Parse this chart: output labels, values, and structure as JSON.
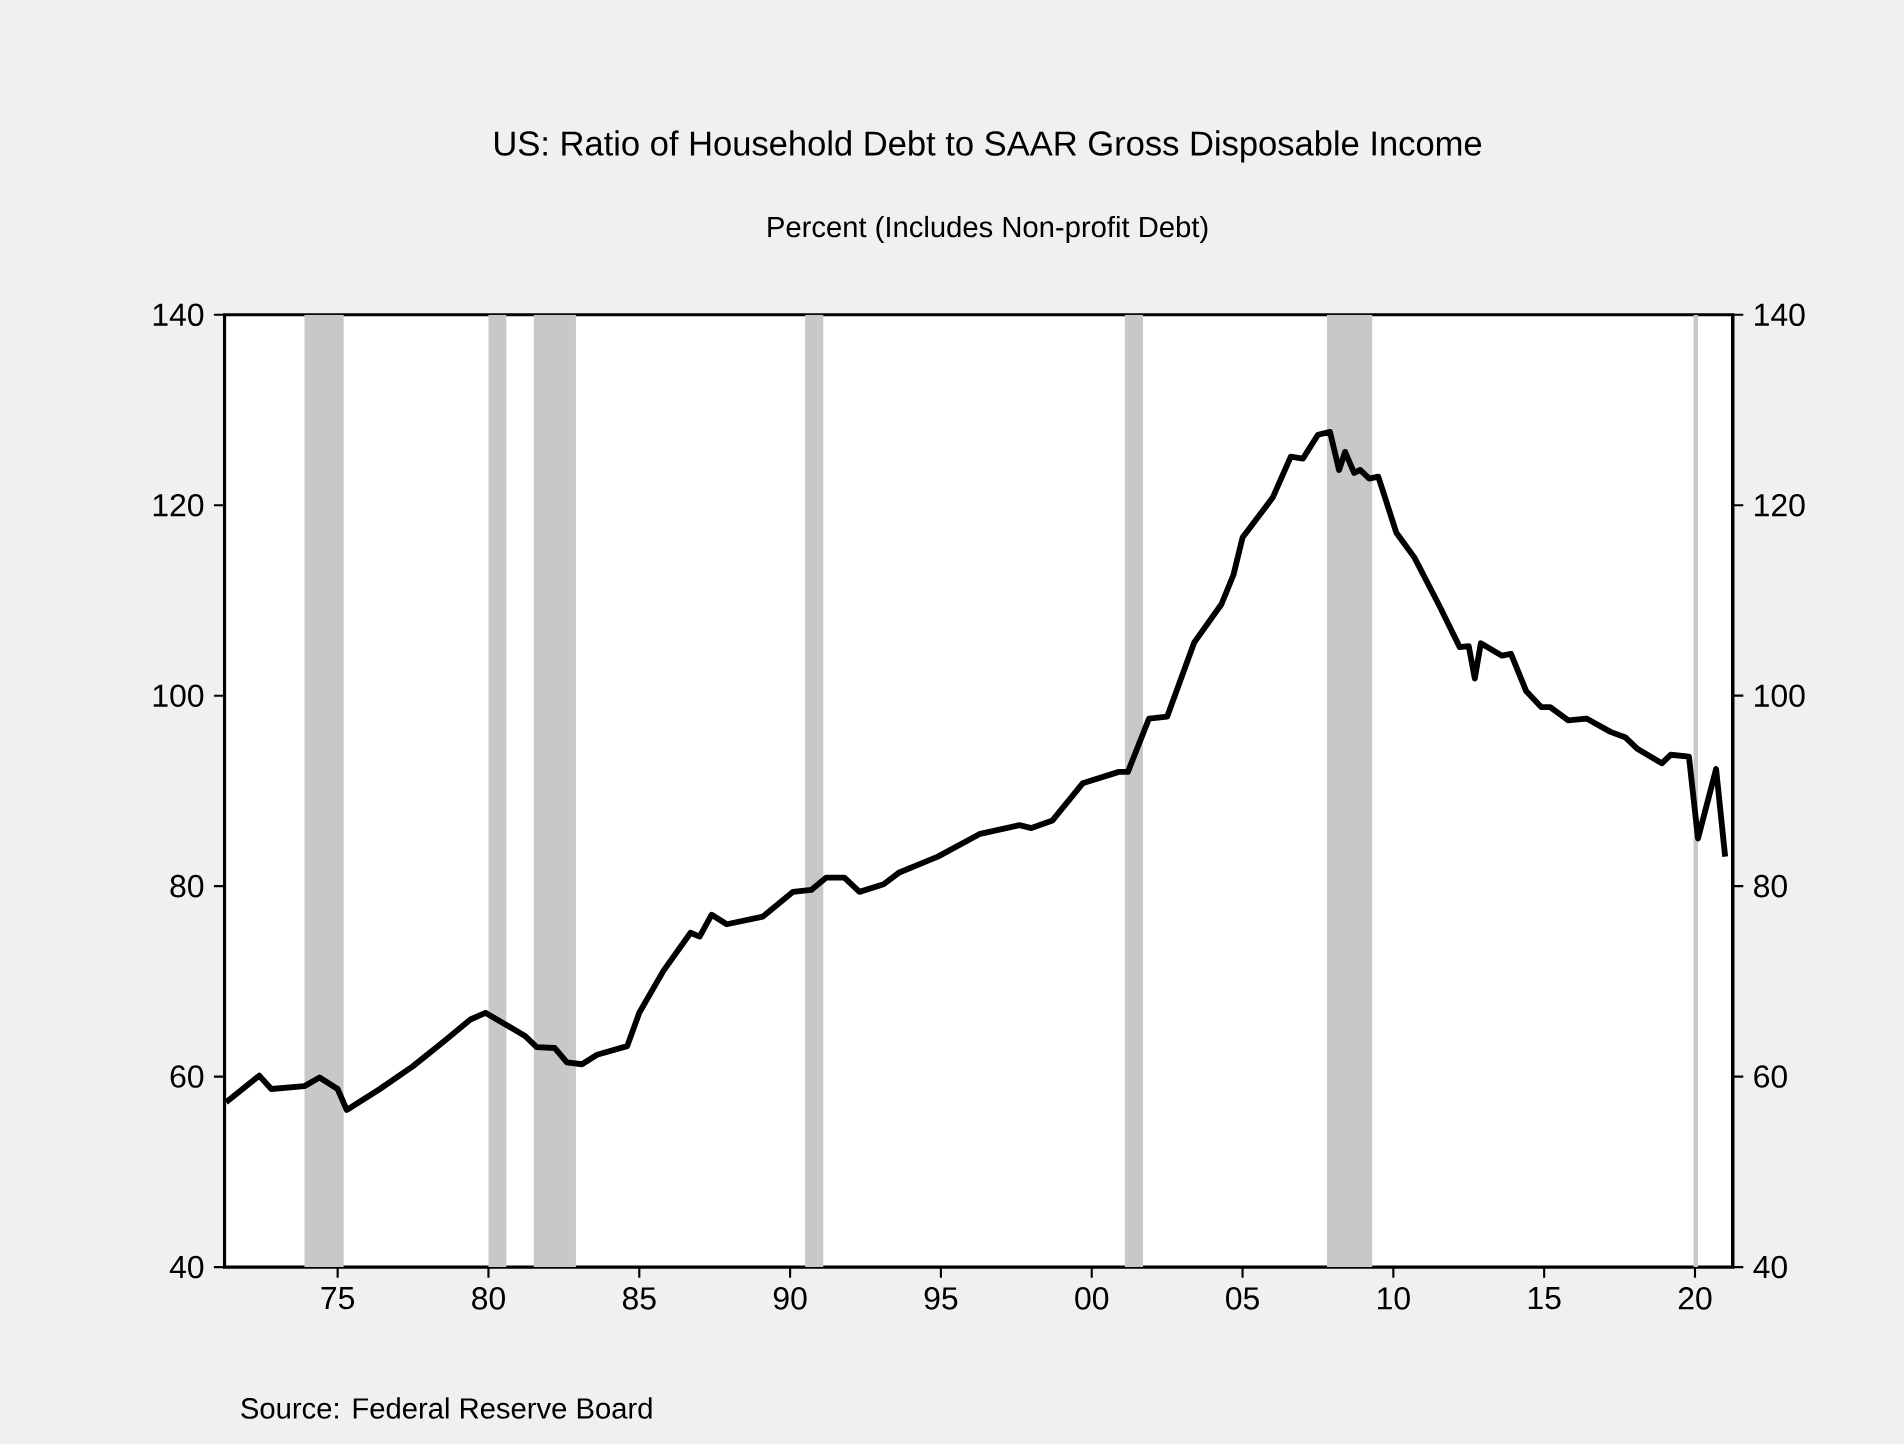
{
  "chart_data": {
    "type": "line",
    "title": "US: Ratio of Household Debt to SAAR Gross Disposable Income",
    "subtitle": "Percent (Includes Non-profit Debt)",
    "annotations": [
      "Source:  Federal Reserve Board"
    ],
    "x": [
      1971.3,
      1972.4,
      1972.8,
      1973.9,
      1974.4,
      1975.0,
      1975.3,
      1976.4,
      1977.5,
      1978.6,
      1979.4,
      1979.9,
      1981.2,
      1981.6,
      1982.2,
      1982.6,
      1983.1,
      1983.6,
      1984.6,
      1985.0,
      1985.8,
      1986.7,
      1987.0,
      1987.4,
      1987.9,
      1989.1,
      1990.1,
      1990.7,
      1991.2,
      1991.8,
      1992.3,
      1993.1,
      1993.6,
      1994.9,
      1996.3,
      1997.6,
      1998.0,
      1998.7,
      1999.7,
      2000.9,
      2001.2,
      2001.9,
      2002.5,
      2003.4,
      2004.3,
      2004.7,
      2005.0,
      2006.0,
      2006.6,
      2007.0,
      2007.5,
      2007.9,
      2008.2,
      2008.4,
      2008.7,
      2008.9,
      2009.2,
      2009.5,
      2010.1,
      2010.7,
      2011.5,
      2012.2,
      2012.5,
      2012.7,
      2012.9,
      2013.6,
      2013.9,
      2014.4,
      2014.9,
      2015.2,
      2015.8,
      2016.4,
      2017.2,
      2017.7,
      2018.1,
      2018.9,
      2019.2,
      2019.8,
      2020.1,
      2020.7,
      2021.0
    ],
    "series": [
      {
        "color": "#000000",
        "values": [
          57.3,
          60.1,
          58.7,
          59.0,
          59.9,
          58.7,
          56.5,
          58.7,
          61.1,
          63.9,
          66.0,
          66.7,
          64.3,
          63.1,
          63.0,
          61.5,
          61.3,
          62.3,
          63.2,
          66.7,
          71.1,
          75.1,
          74.7,
          77.0,
          76.0,
          76.8,
          79.4,
          79.6,
          80.9,
          80.9,
          79.4,
          80.2,
          81.4,
          83.1,
          85.5,
          86.4,
          86.1,
          86.9,
          90.8,
          92.0,
          92.0,
          97.6,
          97.8,
          105.6,
          109.6,
          112.7,
          116.6,
          120.8,
          125.1,
          124.9,
          127.4,
          127.7,
          123.7,
          125.6,
          123.4,
          123.7,
          122.8,
          123.0,
          117.1,
          114.5,
          109.6,
          105.1,
          105.2,
          101.8,
          105.5,
          104.2,
          104.4,
          100.5,
          98.8,
          98.8,
          97.4,
          97.6,
          96.2,
          95.6,
          94.4,
          92.9,
          93.8,
          93.6,
          85.0,
          92.3,
          83.1
        ]
      }
    ],
    "xlim": [
      1971.25,
      2021.25
    ],
    "xticks": [
      {
        "value": 1975,
        "label": "75"
      },
      {
        "value": 1980,
        "label": "80"
      },
      {
        "value": 1985,
        "label": "85"
      },
      {
        "value": 1990,
        "label": "90"
      },
      {
        "value": 1995,
        "label": "95"
      },
      {
        "value": 2000,
        "label": "00"
      },
      {
        "value": 2005,
        "label": "05"
      },
      {
        "value": 2010,
        "label": "10"
      },
      {
        "value": 2015,
        "label": "15"
      },
      {
        "value": 2020,
        "label": "20"
      }
    ],
    "ylim": [
      40,
      140
    ],
    "yticks": [
      40,
      60,
      80,
      100,
      120,
      140
    ],
    "y2lim": [
      40,
      140
    ],
    "y2ticks": [
      40,
      60,
      80,
      100,
      120,
      140
    ],
    "bands": [
      {
        "axis": "x",
        "from": 1973.9,
        "to": 1975.2,
        "color": "#c8c8c8"
      },
      {
        "axis": "x",
        "from": 1980.0,
        "to": 1980.6,
        "color": "#c8c8c8"
      },
      {
        "axis": "x",
        "from": 1981.5,
        "to": 1982.9,
        "color": "#c8c8c8"
      },
      {
        "axis": "x",
        "from": 1990.5,
        "to": 1991.1,
        "color": "#c8c8c8"
      },
      {
        "axis": "x",
        "from": 2001.1,
        "to": 2001.7,
        "color": "#c8c8c8"
      },
      {
        "axis": "x",
        "from": 2007.8,
        "to": 2009.3,
        "color": "#c8c8c8"
      },
      {
        "axis": "x",
        "from": 2019.95,
        "to": 2020.1,
        "color": "#c8c8c8"
      }
    ],
    "grid": false,
    "line_style": "solid",
    "marker": "none"
  }
}
